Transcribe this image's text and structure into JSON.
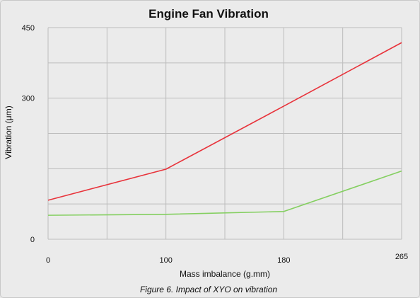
{
  "chart_data": {
    "type": "line",
    "title": "Engine Fan Vibration",
    "xlabel": "Mass imbalance (g.mm)",
    "ylabel": "Vibration (μm)",
    "caption": "Figure 6. Impact of XYO on vibration",
    "x_ticks": [
      0,
      100,
      180,
      265
    ],
    "y_ticks": [
      0,
      300,
      450
    ],
    "xlim": [
      0,
      300
    ],
    "ylim": [
      0,
      450
    ],
    "grid": true,
    "series": [
      {
        "color": "#e8333b",
        "x": [
          0,
          100,
          200,
          300
        ],
        "y": [
          83,
          149,
          283,
          418
        ]
      },
      {
        "color": "#84cf60",
        "x": [
          0,
          100,
          200,
          300
        ],
        "y": [
          51,
          53,
          59,
          145
        ]
      }
    ]
  }
}
